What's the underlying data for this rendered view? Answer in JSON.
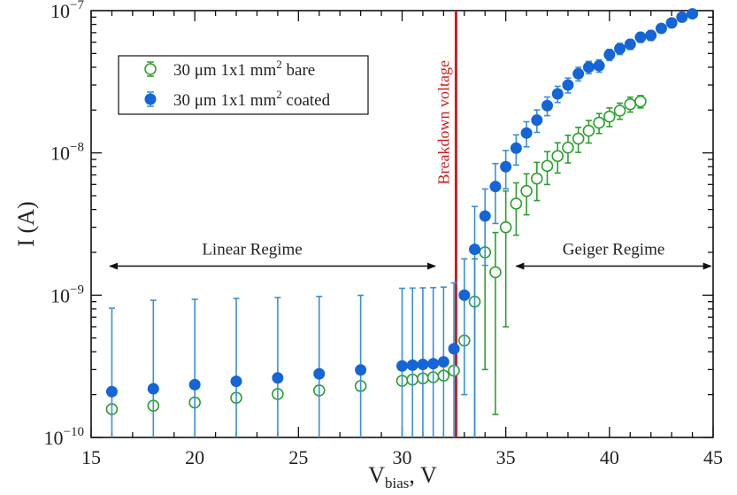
{
  "chart_data": {
    "type": "scatter",
    "xlabel": "V",
    "xlabel_sub": "bias",
    "xlabel_unit": ", V",
    "ylabel": "I (A)",
    "xlim": [
      15,
      45
    ],
    "ylim": [
      1e-10,
      1e-07
    ],
    "yscale": "log",
    "x_ticks": [
      15,
      20,
      25,
      30,
      35,
      40,
      45
    ],
    "y_ticks": [
      {
        "value": 1e-10,
        "base": "10",
        "exp": "−10"
      },
      {
        "value": 1e-09,
        "base": "10",
        "exp": "−9"
      },
      {
        "value": 1e-08,
        "base": "10",
        "exp": "−8"
      },
      {
        "value": 1e-07,
        "base": "10",
        "exp": "−7"
      }
    ],
    "grid": false,
    "legend_position": "top-left",
    "series": [
      {
        "name_main": "30 μm 1x1 mm",
        "name_sup": "2",
        "name_tail": " bare",
        "color": "#2ca02c",
        "marker": "open-circle",
        "x": [
          16,
          18,
          20,
          22,
          24,
          26,
          28,
          30,
          30.5,
          31,
          31.5,
          32,
          32.5,
          33,
          33.5,
          34,
          34.5,
          35,
          35.5,
          36,
          36.5,
          37,
          37.5,
          38,
          38.5,
          39,
          39.5,
          40,
          40.5,
          41,
          41.5
        ],
        "y": [
          1.58e-10,
          1.67e-10,
          1.76e-10,
          1.9e-10,
          2.02e-10,
          2.14e-10,
          2.3e-10,
          2.5e-10,
          2.55e-10,
          2.6e-10,
          2.65e-10,
          2.72e-10,
          2.95e-10,
          4.8e-10,
          9e-10,
          2e-09,
          1.45e-09,
          3e-09,
          4.4e-09,
          5.4e-09,
          6.6e-09,
          8.1e-09,
          9.5e-09,
          1.09e-08,
          1.26e-08,
          1.43e-08,
          1.63e-08,
          1.8e-08,
          1.98e-08,
          2.2e-08,
          2.3e-08
        ],
        "err": [
          null,
          null,
          null,
          null,
          null,
          null,
          null,
          null,
          null,
          null,
          null,
          null,
          null,
          null,
          1.0,
          0.85,
          0.9,
          0.8,
          0.4,
          0.32,
          0.3,
          0.26,
          0.24,
          0.22,
          0.2,
          0.18,
          0.16,
          0.15,
          0.13,
          0.12,
          0.1
        ]
      },
      {
        "name_main": "30 μm 1x1 mm",
        "name_sup": "2",
        "name_tail": " coated",
        "color": "#1565d6",
        "error_color": "#3a8fd9",
        "marker": "filled-circle",
        "x": [
          16,
          18,
          20,
          22,
          24,
          26,
          28,
          30,
          30.5,
          31,
          31.5,
          32,
          32.5,
          33,
          33.5,
          34,
          34.5,
          35,
          35.5,
          36,
          36.5,
          37,
          37.5,
          38,
          38.5,
          39,
          39.5,
          40,
          40.5,
          41,
          41.5,
          42,
          42.5,
          43,
          43.5,
          44
        ],
        "y": [
          2.1e-10,
          2.2e-10,
          2.35e-10,
          2.48e-10,
          2.62e-10,
          2.8e-10,
          2.98e-10,
          3.18e-10,
          3.22e-10,
          3.26e-10,
          3.3e-10,
          3.4e-10,
          4.2e-10,
          1e-09,
          2.1e-09,
          3.6e-09,
          5.8e-09,
          8e-09,
          1.08e-08,
          1.38e-08,
          1.7e-08,
          2.15e-08,
          2.6e-08,
          3e-08,
          3.6e-08,
          4e-08,
          4.1e-08,
          4.9e-08,
          5.4e-08,
          5.8e-08,
          6.5e-08,
          6.7e-08,
          7.5e-08,
          8.2e-08,
          9e-08,
          9.5e-08
        ],
        "err": [
          6e-10,
          7e-10,
          7e-10,
          7e-10,
          7e-10,
          7e-10,
          7e-10,
          8e-10,
          8e-10,
          8e-10,
          8e-10,
          8e-10,
          8e-10,
          8e-10,
          1.0,
          0.55,
          0.45,
          0.3,
          0.24,
          0.2,
          0.18,
          0.15,
          0.13,
          0.12,
          0.11,
          0.1,
          0.1,
          0.09,
          0.09,
          0.08,
          0.08,
          0.08,
          0.07,
          0.07,
          0.07,
          0.06
        ]
      }
    ],
    "annotations": {
      "breakdown": {
        "x": 32.6,
        "label": "Breakdown voltage",
        "color": "#cc1f1f"
      },
      "linear": {
        "label": "Linear Regime",
        "x_from": 15.9,
        "x_to": 31.6,
        "y": 1.6e-09
      },
      "geiger": {
        "label": "Geiger Regime",
        "x_from": 35.5,
        "x_to": 44.9,
        "y": 1.6e-09
      }
    }
  }
}
